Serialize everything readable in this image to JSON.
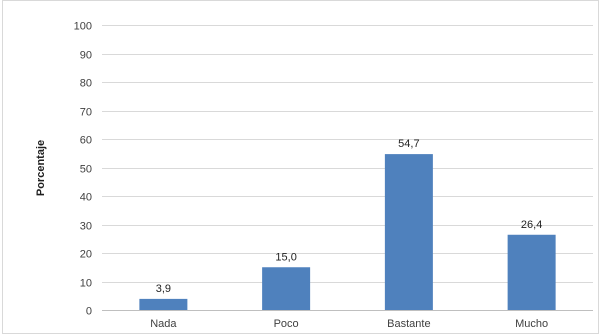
{
  "chart_data": {
    "type": "bar",
    "title": "",
    "xlabel": "",
    "ylabel": "Porcentaje",
    "categories": [
      "Nada",
      "Poco",
      "Bastante",
      "Mucho"
    ],
    "values": [
      3.9,
      15.0,
      54.7,
      26.4
    ],
    "value_labels": [
      "3,9",
      "15,0",
      "54,7",
      "26,4"
    ],
    "ylim": [
      0,
      100
    ],
    "yticks": [
      0,
      10,
      20,
      30,
      40,
      50,
      60,
      70,
      80,
      90,
      100
    ],
    "grid": true,
    "legend": "none",
    "colors": {
      "bar": "#4F81BD",
      "grid": "#D9D9D9",
      "frame": "#D9D9D9"
    }
  }
}
